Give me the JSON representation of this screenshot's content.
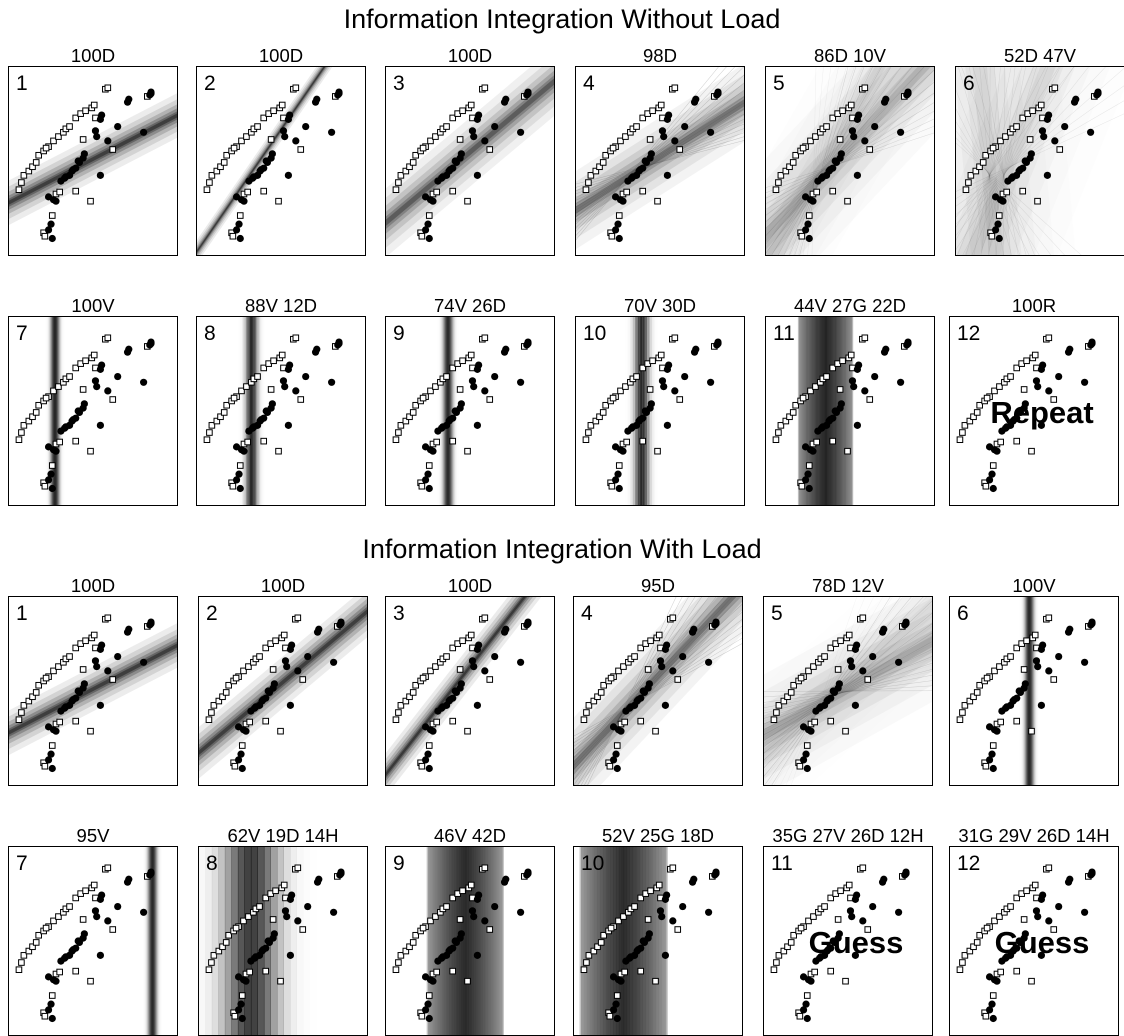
{
  "sections": [
    {
      "title": "Information Integration Without Load",
      "rows": [
        [
          {
            "n": "1",
            "label": "100D",
            "bound": "D",
            "lines": [
              [
                -18.4,
                27.4,
                1
              ]
            ],
            "spread": 1.5
          },
          {
            "n": "2",
            "label": "100D",
            "bound": "D",
            "lines": [
              [
                -108.1,
                55.4,
                1
              ]
            ],
            "spread": 0.5
          },
          {
            "n": "3",
            "label": "100D",
            "bound": "D",
            "lines": [
              [
                -52.8,
                40.0,
                1
              ]
            ],
            "spread": 2
          },
          {
            "n": "4",
            "label": "98D",
            "bound": "D",
            "lines": [
              [
                -35.4,
                32.5,
                1
              ]
            ],
            "spread": 2.5
          },
          {
            "n": "5",
            "label": "86D 10V",
            "bound": "D",
            "lines": [
              [
                -70.9,
                46.8,
                0.7
              ],
              [
                -120,
                60,
                0.3
              ]
            ],
            "spread": 4
          },
          {
            "n": "6",
            "label": "52D 47V",
            "bound": "D",
            "lines": [
              [
                -150,
                68,
                0.5
              ],
              [
                -260,
                95,
                0.5
              ]
            ],
            "spread": 6
          }
        ],
        [
          {
            "n": "7",
            "label": "100V",
            "bound": "V",
            "x0": -0.55,
            "w": 0.08
          },
          {
            "n": "8",
            "label": "88V 12D",
            "bound": "V",
            "x0": -0.2,
            "w": 0.45
          },
          {
            "n": "9",
            "label": "74V 26D",
            "bound": "V",
            "x0": 0.1,
            "w": 0.35
          },
          {
            "n": "10",
            "label": "70V 30D",
            "bound": "V",
            "x0": 0.25,
            "w": 0.55
          },
          {
            "n": "11",
            "label": "44V 27G 22D",
            "bound": "G",
            "x0": 0,
            "w": 1.0
          },
          {
            "n": "12",
            "label": "100R",
            "bound": "R",
            "word": "Repeat"
          }
        ]
      ]
    },
    {
      "title": "Information Integration With Load",
      "rows": [
        [
          {
            "n": "1",
            "label": "100D",
            "bound": "D",
            "lines": [
              [
                -18.4,
                27.4,
                1
              ]
            ],
            "spread": 1.5
          },
          {
            "n": "2",
            "label": "100D",
            "bound": "D",
            "lines": [
              [
                -52.8,
                40.0,
                1
              ]
            ],
            "spread": 1.5
          },
          {
            "n": "3",
            "label": "100D",
            "bound": "D",
            "lines": [
              [
                -95,
                52,
                1
              ]
            ],
            "spread": 1
          },
          {
            "n": "4",
            "label": "95D",
            "bound": "D",
            "lines": [
              [
                -70.9,
                46.8,
                1
              ]
            ],
            "spread": 2.5
          },
          {
            "n": "5",
            "label": "78D 12V",
            "bound": "D",
            "lines": [
              [
                -25,
                29,
                0.8
              ],
              [
                -60,
                42,
                0.2
              ]
            ],
            "spread": 4
          },
          {
            "n": "6",
            "label": "100V",
            "bound": "V",
            "x0": 0.8,
            "w": 0.12
          }
        ],
        [
          {
            "n": "7",
            "label": "95V",
            "bound": "V",
            "x0": 3.4,
            "w": 0.2
          },
          {
            "n": "8",
            "label": "62V 19D 14H",
            "bound": "V",
            "x0": -0.3,
            "w": 2.2
          },
          {
            "n": "9",
            "label": "46V 42D",
            "bound": "G",
            "x0": 0.8,
            "w": 1.4
          },
          {
            "n": "10",
            "label": "52V 25G 18D",
            "bound": "G",
            "x0": -0.4,
            "w": 1.6
          },
          {
            "n": "11",
            "label": "35G 27V 26D 12H",
            "bound": "R",
            "word": "Guess"
          },
          {
            "n": "12",
            "label": "31G 29V 26D 14H",
            "bound": "R",
            "word": "Guess"
          }
        ]
      ]
    }
  ],
  "chart_data": {
    "type": "scatter",
    "xlim": [
      -2.2,
      4.2
    ],
    "ylim": [
      -1.6,
      4.6
    ],
    "series": [
      {
        "marker": "open-square",
        "points": [
          [
            1.5,
            4.0
          ],
          [
            1.6,
            4.05
          ],
          [
            0.3,
            3.0
          ],
          [
            0.5,
            3.15
          ],
          [
            0.7,
            3.25
          ],
          [
            0.95,
            3.35
          ],
          [
            1.05,
            3.45
          ],
          [
            -0.8,
            2.0
          ],
          [
            -0.6,
            2.2
          ],
          [
            -0.4,
            2.35
          ],
          [
            -0.2,
            2.5
          ],
          [
            -0.1,
            2.62
          ],
          [
            0.05,
            2.7
          ],
          [
            -1.2,
            1.7
          ],
          [
            -1.0,
            1.85
          ],
          [
            -0.9,
            1.95
          ],
          [
            -1.8,
            1.0
          ],
          [
            -1.6,
            1.15
          ],
          [
            -1.45,
            1.3
          ],
          [
            -1.3,
            1.45
          ],
          [
            -1.9,
            0.75
          ],
          [
            0.6,
            2.25
          ],
          [
            -2.0,
            0.5
          ],
          [
            -0.5,
            0.35
          ],
          [
            -0.35,
            0.42
          ],
          [
            -1.0,
            -1.0
          ],
          [
            -0.95,
            -1.12
          ],
          [
            1.1,
            3.0
          ],
          [
            1.8,
            1.9
          ],
          [
            0.9,
            0.1
          ],
          [
            0.3,
            0.45
          ],
          [
            -0.65,
            -0.4
          ],
          [
            3.2,
            3.75
          ]
        ]
      },
      {
        "marker": "filled-circle",
        "points": [
          [
            2.4,
            3.55
          ],
          [
            2.45,
            3.65
          ],
          [
            1.3,
            2.95
          ],
          [
            1.35,
            3.1
          ],
          [
            2.0,
            2.7
          ],
          [
            3.3,
            3.8
          ],
          [
            3.35,
            3.85
          ],
          [
            3.35,
            3.9
          ],
          [
            1.15,
            2.35
          ],
          [
            1.1,
            2.55
          ],
          [
            0.6,
            1.6
          ],
          [
            0.65,
            1.75
          ],
          [
            1.6,
            2.2
          ],
          [
            3.05,
            2.5
          ],
          [
            0.2,
            1.2
          ],
          [
            0.3,
            1.25
          ],
          [
            0.45,
            1.45
          ],
          [
            0.4,
            1.5
          ],
          [
            0.15,
            1.15
          ],
          [
            0.05,
            1.0
          ],
          [
            -0.1,
            0.95
          ],
          [
            -0.3,
            0.8
          ],
          [
            -0.15,
            0.9
          ],
          [
            1.3,
            1.0
          ],
          [
            -0.5,
            0.1
          ],
          [
            -0.6,
            0.15
          ],
          [
            -0.8,
            0.25
          ],
          [
            -0.7,
            -0.7
          ],
          [
            -0.8,
            -0.9
          ],
          [
            -0.65,
            -1.2
          ]
        ]
      }
    ]
  }
}
